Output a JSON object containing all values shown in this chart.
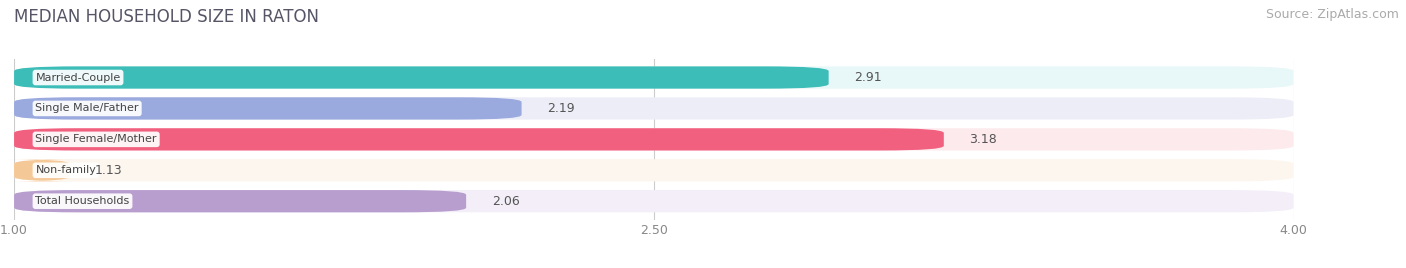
{
  "title": "MEDIAN HOUSEHOLD SIZE IN RATON",
  "source": "Source: ZipAtlas.com",
  "categories": [
    "Married-Couple",
    "Single Male/Father",
    "Single Female/Mother",
    "Non-family",
    "Total Households"
  ],
  "values": [
    2.91,
    2.19,
    3.18,
    1.13,
    2.06
  ],
  "bar_colors": [
    "#3dbdb8",
    "#9aaade",
    "#f26080",
    "#f5c898",
    "#b89ece"
  ],
  "bar_bg_colors": [
    "#e8f7f7",
    "#ededf8",
    "#fceaed",
    "#fdf6ee",
    "#f3eef8"
  ],
  "xmin": 1.0,
  "xmax": 4.0,
  "xticks": [
    1.0,
    2.5,
    4.0
  ],
  "xtick_labels": [
    "1.00",
    "2.50",
    "4.00"
  ],
  "title_fontsize": 12,
  "source_fontsize": 9,
  "bar_label_fontsize": 9,
  "category_label_fontsize": 8,
  "background_color": "#ffffff",
  "row_bg_color": "#f0f0f0"
}
